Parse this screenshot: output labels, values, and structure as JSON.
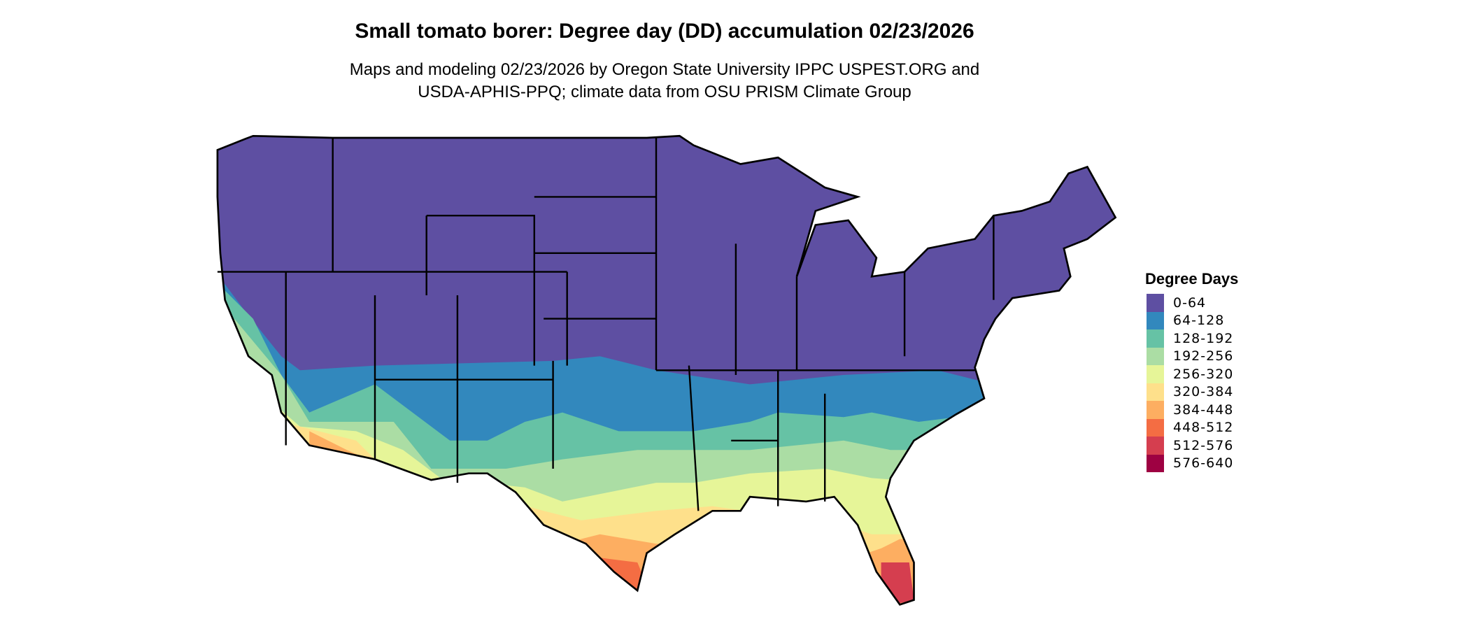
{
  "title": "Small tomato borer: Degree day (DD) accumulation 02/23/2026",
  "subtitle_line1": "Maps and modeling 02/23/2026 by Oregon State University IPPC USPEST.ORG and",
  "subtitle_line2": "USDA-APHIS-PPQ; climate data from OSU PRISM Climate Group",
  "legend": {
    "title": "Degree Days",
    "items": [
      {
        "label": "0-64",
        "color": "#5E4FA2"
      },
      {
        "label": "64-128",
        "color": "#3288BD"
      },
      {
        "label": "128-192",
        "color": "#66C2A5"
      },
      {
        "label": "192-256",
        "color": "#ABDDA4"
      },
      {
        "label": "256-320",
        "color": "#E6F598"
      },
      {
        "label": "320-384",
        "color": "#FEE08B"
      },
      {
        "label": "384-448",
        "color": "#FDAE61"
      },
      {
        "label": "448-512",
        "color": "#F46D43"
      },
      {
        "label": "512-576",
        "color": "#D53E4F"
      },
      {
        "label": "576-640",
        "color": "#9E0142"
      }
    ]
  }
}
